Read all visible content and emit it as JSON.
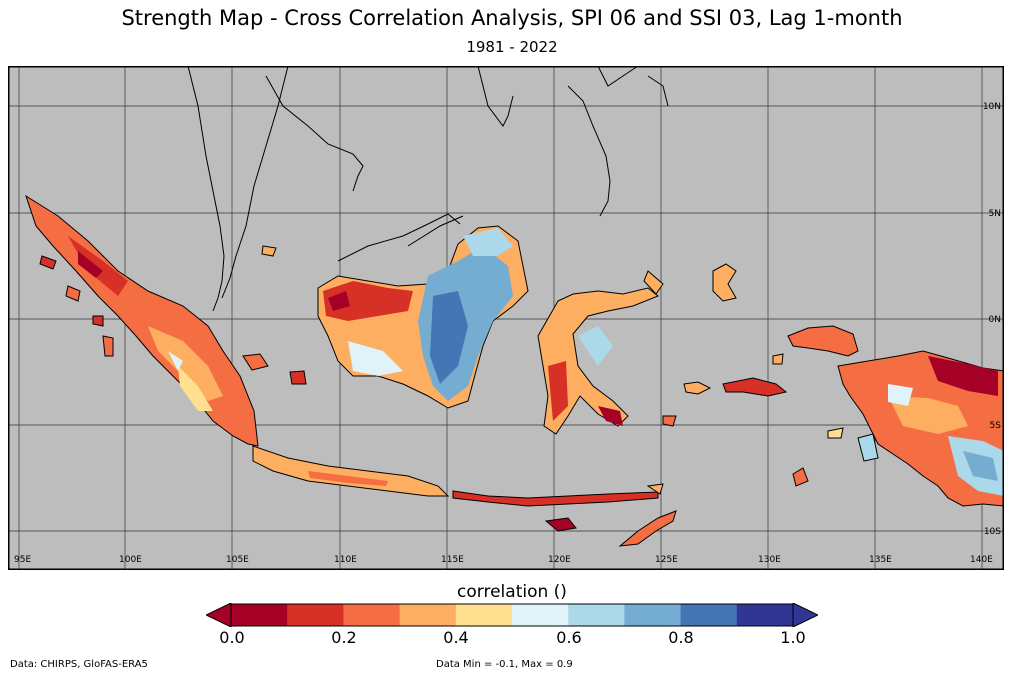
{
  "title": "Strength Map - Cross Correlation Analysis, SPI 06 and SSI 03, Lag 1-month",
  "subtitle": "1981 - 2022",
  "map": {
    "background_color": "#bdbdbd",
    "lon_ticks": [
      "95E",
      "100E",
      "105E",
      "110E",
      "115E",
      "120E",
      "125E",
      "130E",
      "135E",
      "140E"
    ],
    "lat_ticks": [
      "10N",
      "5N",
      "0N",
      "5S",
      "10S"
    ],
    "lon_range": [
      94.5,
      141
    ],
    "lat_range": [
      -11,
      12.5
    ]
  },
  "colorbar": {
    "title": "correlation ()",
    "labels": [
      "0.0",
      "0.2",
      "0.4",
      "0.6",
      "0.8",
      "1.0"
    ],
    "colors": [
      "#a50026",
      "#d73027",
      "#f46d43",
      "#fdae61",
      "#fee090",
      "#e0f3f8",
      "#abd9e9",
      "#74add1",
      "#4575b4",
      "#313695"
    ],
    "under_color": "#a50026",
    "over_color": "#313695"
  },
  "footer": {
    "source": "Data: CHIRPS, GloFAS-ERA5",
    "stats": "Data Min = -0.1, Max = 0.9"
  }
}
